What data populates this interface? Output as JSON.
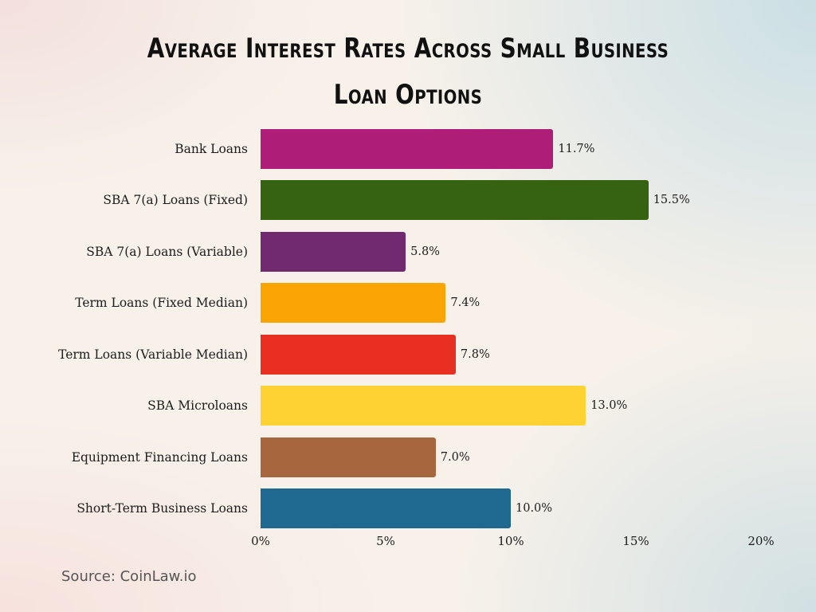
{
  "title": "Average Interest Rates Across Small Business Loan Options",
  "title_line1": "Average Interest Rates Across Small Business",
  "title_line2": "Loan Options",
  "source": "Source: CoinLaw.io",
  "bars": [
    {
      "label": "Bank Loans",
      "value": 11.7,
      "value_label": "11.7%",
      "color": "#ae1e79"
    },
    {
      "label": "SBA 7(a) Loans (Fixed)",
      "value": 15.5,
      "value_label": "15.5%",
      "color": "#356312"
    },
    {
      "label": "SBA 7(a) Loans (Variable)",
      "value": 5.8,
      "value_label": "5.8%",
      "color": "#712a70"
    },
    {
      "label": "Term Loans (Fixed Median)",
      "value": 7.4,
      "value_label": "7.4%",
      "color": "#fba505"
    },
    {
      "label": "Term Loans (Variable Median)",
      "value": 7.8,
      "value_label": "7.8%",
      "color": "#e92f21"
    },
    {
      "label": "SBA Microloans",
      "value": 13.0,
      "value_label": "13.0%",
      "color": "#fed232"
    },
    {
      "label": "Equipment Financing Loans",
      "value": 7.0,
      "value_label": "7.0%",
      "color": "#a8663f"
    },
    {
      "label": "Short-Term Business Loans",
      "value": 10.0,
      "value_label": "10.0%",
      "color": "#1f6890"
    }
  ],
  "x_ticks": [
    "0%",
    "5%",
    "10%",
    "15%",
    "20%"
  ],
  "chart_data": {
    "type": "bar",
    "orientation": "horizontal",
    "title": "Average Interest Rates Across Small Business Loan Options",
    "categories": [
      "Bank Loans",
      "SBA 7(a) Loans (Fixed)",
      "SBA 7(a) Loans (Variable)",
      "Term Loans (Fixed Median)",
      "Term Loans (Variable Median)",
      "SBA Microloans",
      "Equipment Financing Loans",
      "Short-Term Business Loans"
    ],
    "values": [
      11.7,
      15.5,
      5.8,
      7.4,
      7.8,
      13.0,
      7.0,
      10.0
    ],
    "data_labels": [
      "11.7%",
      "15.5%",
      "5.8%",
      "7.4%",
      "7.8%",
      "13.0%",
      "7.0%",
      "10.0%"
    ],
    "colors": [
      "#ae1e79",
      "#356312",
      "#712a70",
      "#fba505",
      "#e92f21",
      "#fed232",
      "#a8663f",
      "#1f6890"
    ],
    "xlabel": "",
    "ylabel": "",
    "xlim": [
      0,
      20
    ],
    "x_ticks": [
      "0%",
      "5%",
      "10%",
      "15%",
      "20%"
    ],
    "grid": false,
    "legend": null,
    "source": "Source: CoinLaw.io"
  }
}
